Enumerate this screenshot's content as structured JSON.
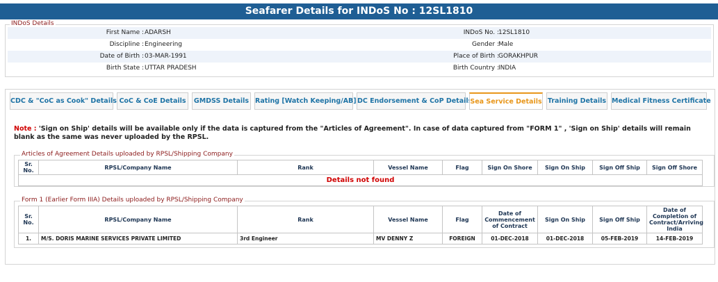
{
  "header": {
    "title": "Seafarer Details for INDoS No : 12SL1810"
  },
  "indos_details": {
    "legend": "INDoS Details",
    "rows": [
      [
        "First Name :",
        "ADARSH",
        "INDoS No. :",
        "12SL1810"
      ],
      [
        "Discipline :",
        "Engineering",
        "Gender :",
        "Male"
      ],
      [
        "Date of Birth :",
        "03-MAR-1991",
        "Place of Birth :",
        "GORAKHPUR"
      ],
      [
        "Birth State :",
        "UTTAR PRADESH",
        "Birth Country :",
        "INDIA"
      ]
    ]
  },
  "tabs": [
    "CDC & \"CoC as Cook\" Details",
    "CoC & CoE Details",
    "GMDSS Details",
    "Rating [Watch Keeping/AB]",
    "DC Endorsement & CoP Details",
    "Sea Service Details",
    "Training Details",
    "Medical Fitness Certificate"
  ],
  "active_tab": 5,
  "note": {
    "label": "Note :",
    "text": "'Sign on Ship' details will be available only if the data is captured from the \"Articles of Agreement\". In case of data captured from \"FORM 1\" , 'Sign on Ship' details will remain blank as the same was never uploaded by the RPSL."
  },
  "articles": {
    "legend": "Articles of Agreement Details uploaded by RPSL/Shipping Company",
    "columns": [
      "Sr. No.",
      "RPSL/Company Name",
      "Rank",
      "Vessel Name",
      "Flag",
      "Sign On Shore",
      "Sign On Ship",
      "Sign Off Ship",
      "Sign Off Shore"
    ],
    "empty_message": "Details not found"
  },
  "form1": {
    "legend": "Form 1 (Earlier Form IIIA) Details uploaded by RPSL/Shipping Company",
    "columns": [
      "Sr. No.",
      "RPSL/Company Name",
      "Rank",
      "Vessel Name",
      "Flag",
      "Date of Commencement of Contract",
      "Sign On Ship",
      "Sign Off Ship",
      "Date of Completion of Contract/Arriving India"
    ],
    "rows": [
      [
        "1.",
        "M/S. DORIS MARINE SERVICES PRIVATE LIMITED",
        "3rd Engineer",
        "MV DENNY Z",
        "FOREIGN",
        "01-DEC-2018",
        "01-DEC-2018",
        "05-FEB-2019",
        "14-FEB-2019"
      ]
    ]
  }
}
